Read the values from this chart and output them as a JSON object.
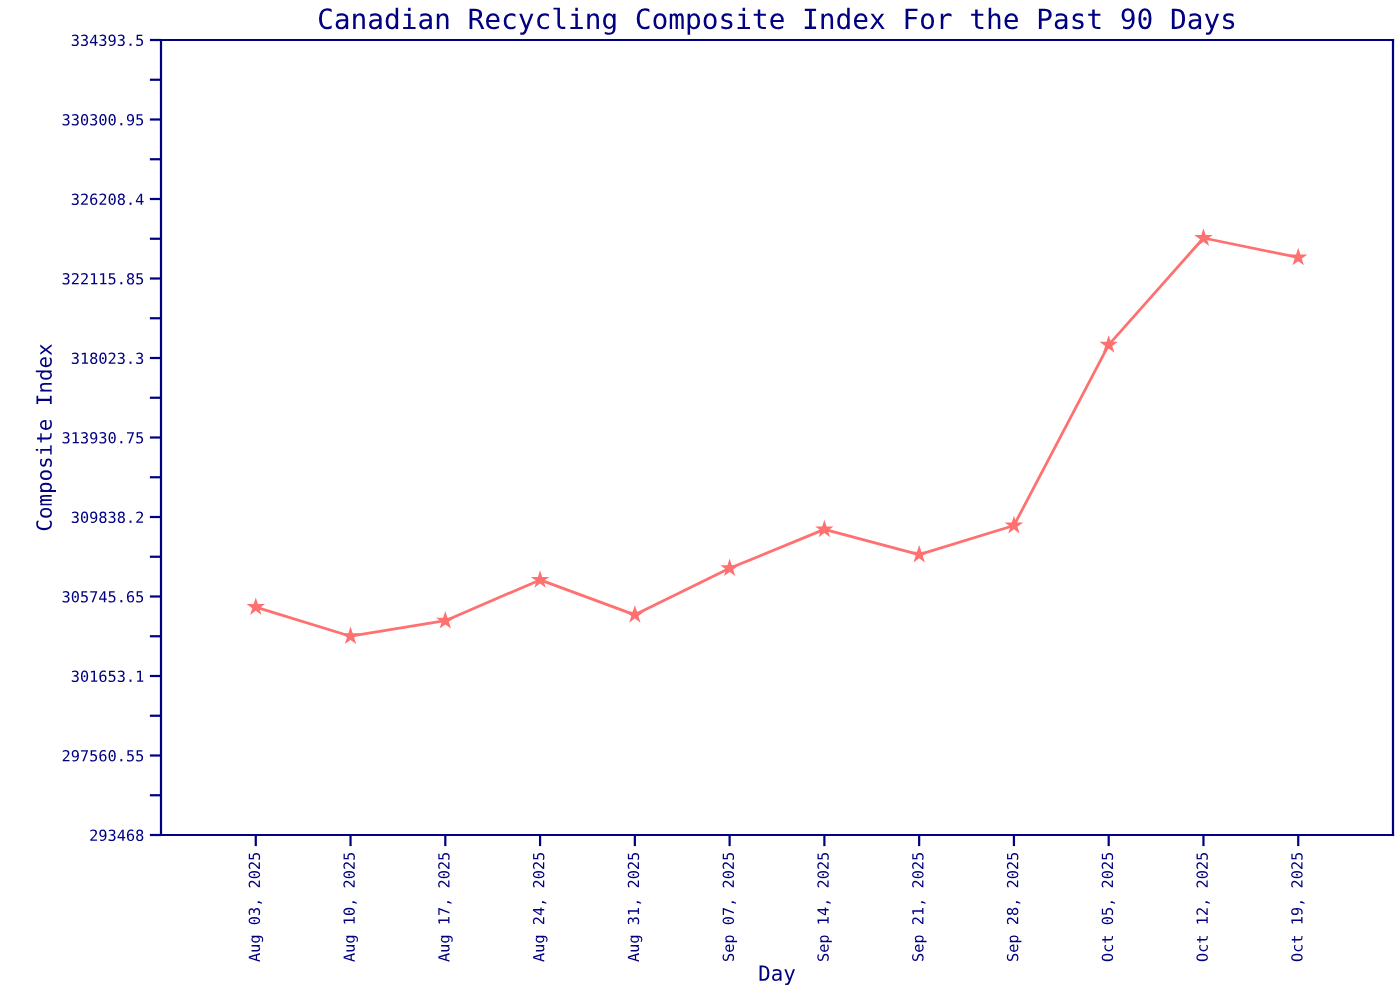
{
  "chart_data": {
    "type": "line",
    "title": "Canadian Recycling Composite Index For the Past 90 Days",
    "xlabel": "Day",
    "ylabel": "Composite Index",
    "categories": [
      "Aug 03, 2025",
      "Aug 10, 2025",
      "Aug 17, 2025",
      "Aug 24, 2025",
      "Aug 31, 2025",
      "Sep 07, 2025",
      "Sep 14, 2025",
      "Sep 21, 2025",
      "Sep 28, 2025",
      "Oct 05, 2025",
      "Oct 12, 2025",
      "Oct 19, 2025"
    ],
    "series": [
      {
        "color": "#ff7070",
        "values": [
          305200,
          303700,
          304500,
          306600,
          304800,
          307200,
          309200,
          307900,
          309400,
          318700,
          324200,
          323200
        ]
      }
    ],
    "ylim": [
      293468,
      334393.5
    ],
    "yticks": [
      293468,
      {
        "value": 295514.275,
        "label": null
      },
      297560.55,
      {
        "value": 299606.825,
        "label": null
      },
      301653.1,
      {
        "value": 303699.375,
        "label": null
      },
      305745.65,
      {
        "value": 307791.925,
        "label": null
      },
      309838.2,
      {
        "value": 311884.475,
        "label": null
      },
      313930.75,
      {
        "value": 315977.025,
        "label": null
      },
      318023.3,
      {
        "value": 320069.575,
        "label": null
      },
      322115.85,
      {
        "value": 324162.125,
        "label": null
      },
      326208.4,
      {
        "value": 328254.675,
        "label": null
      },
      330300.95,
      {
        "value": 332347.225,
        "label": null
      },
      334393.5
    ],
    "grid": false,
    "legend": false,
    "marker": "star",
    "line_style": "solid"
  }
}
